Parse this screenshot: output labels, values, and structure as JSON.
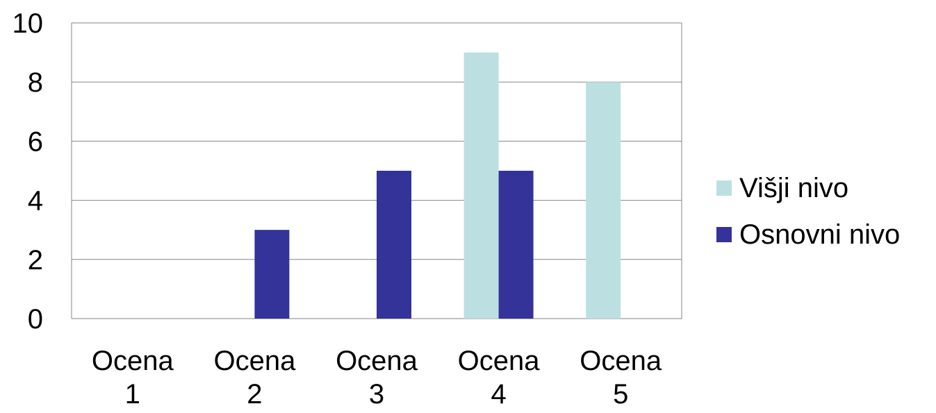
{
  "chart_data": {
    "type": "bar",
    "categories": [
      [
        "Ocena",
        "1"
      ],
      [
        "Ocena",
        "2"
      ],
      [
        "Ocena",
        "3"
      ],
      [
        "Ocena",
        "4"
      ],
      [
        "Ocena",
        "5"
      ]
    ],
    "series": [
      {
        "name": "Višji nivo",
        "values": [
          0,
          0,
          0,
          9,
          8
        ],
        "color": "#bce0e2"
      },
      {
        "name": "Osnovni nivo",
        "values": [
          0,
          3,
          5,
          5,
          0
        ],
        "color": "#333399"
      }
    ],
    "ylim": [
      0,
      10
    ],
    "yticks": [
      "0",
      "2",
      "4",
      "6",
      "8",
      "10"
    ],
    "grid": true,
    "legend_position": "right"
  }
}
